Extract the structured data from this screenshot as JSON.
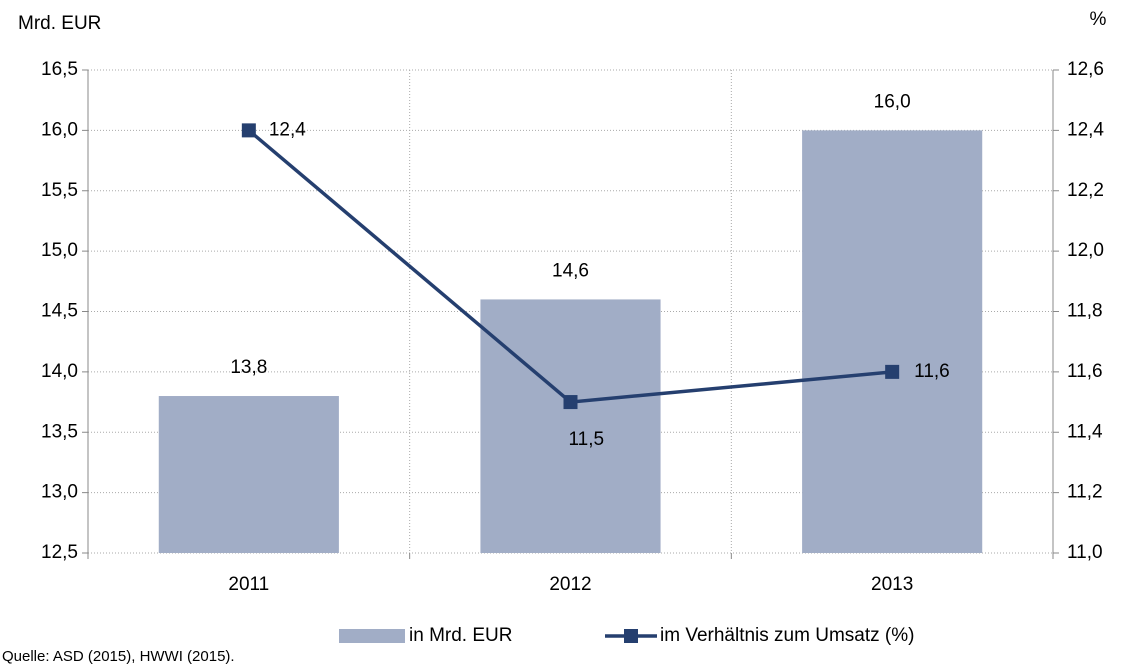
{
  "chart_data": {
    "type": "bar",
    "y_axis_label": "Mrd. EUR",
    "y2_axis_label": "%",
    "categories": [
      "2011",
      "2012",
      "2013"
    ],
    "series": [
      {
        "name": "in Mrd. EUR",
        "type": "bar",
        "color": "#a1adc6",
        "values": [
          13.8,
          14.6,
          16.0
        ],
        "value_labels": [
          "13,8",
          "14,6",
          "16,0"
        ]
      },
      {
        "name": "im Verhältnis zum Umsatz (%)",
        "type": "line",
        "axis": "y2",
        "color": "#253f6f",
        "values": [
          12.4,
          11.5,
          11.6
        ],
        "value_labels": [
          "12,4",
          "11,5",
          "11,6"
        ]
      }
    ],
    "ylim": [
      12.5,
      16.5
    ],
    "yticks": [
      {
        "value": 12.5,
        "label": "12,5"
      },
      {
        "value": 13.0,
        "label": "13,0"
      },
      {
        "value": 13.5,
        "label": "13,5"
      },
      {
        "value": 14.0,
        "label": "14,0"
      },
      {
        "value": 14.5,
        "label": "14,5"
      },
      {
        "value": 15.0,
        "label": "15,0"
      },
      {
        "value": 15.5,
        "label": "15,5"
      },
      {
        "value": 16.0,
        "label": "16,0"
      },
      {
        "value": 16.5,
        "label": "16,5"
      }
    ],
    "y2lim": [
      11.0,
      12.6
    ],
    "y2ticks": [
      {
        "value": 11.0,
        "label": "11,0"
      },
      {
        "value": 11.2,
        "label": "11,2"
      },
      {
        "value": 11.4,
        "label": "11,4"
      },
      {
        "value": 11.6,
        "label": "11,6"
      },
      {
        "value": 11.8,
        "label": "11,8"
      },
      {
        "value": 12.0,
        "label": "12,0"
      },
      {
        "value": 12.2,
        "label": "12,2"
      },
      {
        "value": 12.4,
        "label": "12,4"
      },
      {
        "value": 12.6,
        "label": "12,6"
      }
    ],
    "grid": true,
    "source": "Quelle: ASD (2015), HWWI (2015)."
  }
}
